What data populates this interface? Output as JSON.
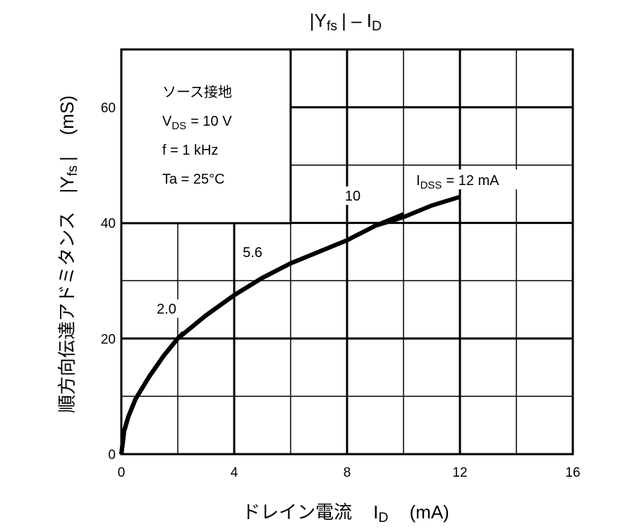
{
  "chart_data": {
    "type": "line",
    "title_parts": [
      "|Y",
      "fs",
      "| – I",
      "D"
    ],
    "x_label_parts": [
      "ドレイン電流",
      "I",
      "D",
      "(mA)"
    ],
    "y_label_parts": [
      "順方向伝達アドミタンス",
      "|Y",
      "fs",
      "|",
      "(mS)"
    ],
    "conditions": [
      [
        "ソース接地"
      ],
      [
        "V",
        "DS",
        "= 10 V"
      ],
      [
        "f = 1 kHz"
      ],
      [
        "Ta = 25°C"
      ]
    ],
    "xlim": [
      0,
      16
    ],
    "ylim": [
      0,
      70
    ],
    "xticks": [
      0,
      4,
      8,
      12,
      16
    ],
    "yticks": [
      0,
      20,
      40,
      60
    ],
    "x_minor_grid": [
      2,
      6,
      10,
      14
    ],
    "y_minor_grid": [
      10,
      30,
      50
    ],
    "grid": true,
    "color": "#000000",
    "series": [
      {
        "name": "2.0",
        "x": [
          0,
          0.1,
          0.25,
          0.5,
          1,
          1.5,
          2,
          2.2
        ],
        "values": [
          0,
          4,
          6.5,
          9.5,
          13.5,
          17,
          20,
          21
        ]
      },
      {
        "name": "5.6",
        "x": [
          0,
          0.1,
          0.25,
          0.5,
          1,
          1.5,
          2,
          3,
          4,
          5,
          5.4
        ],
        "values": [
          0,
          4,
          6.5,
          9.5,
          13.5,
          17,
          20,
          24,
          27.5,
          30.5,
          31.5
        ]
      },
      {
        "name": "10",
        "x": [
          0,
          0.1,
          0.25,
          0.5,
          1,
          1.5,
          2,
          3,
          4,
          5,
          6,
          7,
          8,
          9,
          10
        ],
        "values": [
          0,
          4,
          6.5,
          9.5,
          13.5,
          17,
          20,
          24,
          27.5,
          30.5,
          33,
          35,
          37,
          39.5,
          41.5
        ]
      },
      {
        "name_parts": [
          "I",
          "DSS",
          "= 12 mA"
        ],
        "x": [
          0,
          0.1,
          0.25,
          0.5,
          1,
          1.5,
          2,
          3,
          4,
          5,
          6,
          7,
          8,
          9,
          10,
          11,
          12
        ],
        "values": [
          0,
          4,
          6.5,
          9.5,
          13.5,
          17,
          20,
          24,
          27.5,
          30.5,
          33,
          35,
          37,
          39.5,
          41,
          43,
          44.5
        ]
      }
    ]
  }
}
